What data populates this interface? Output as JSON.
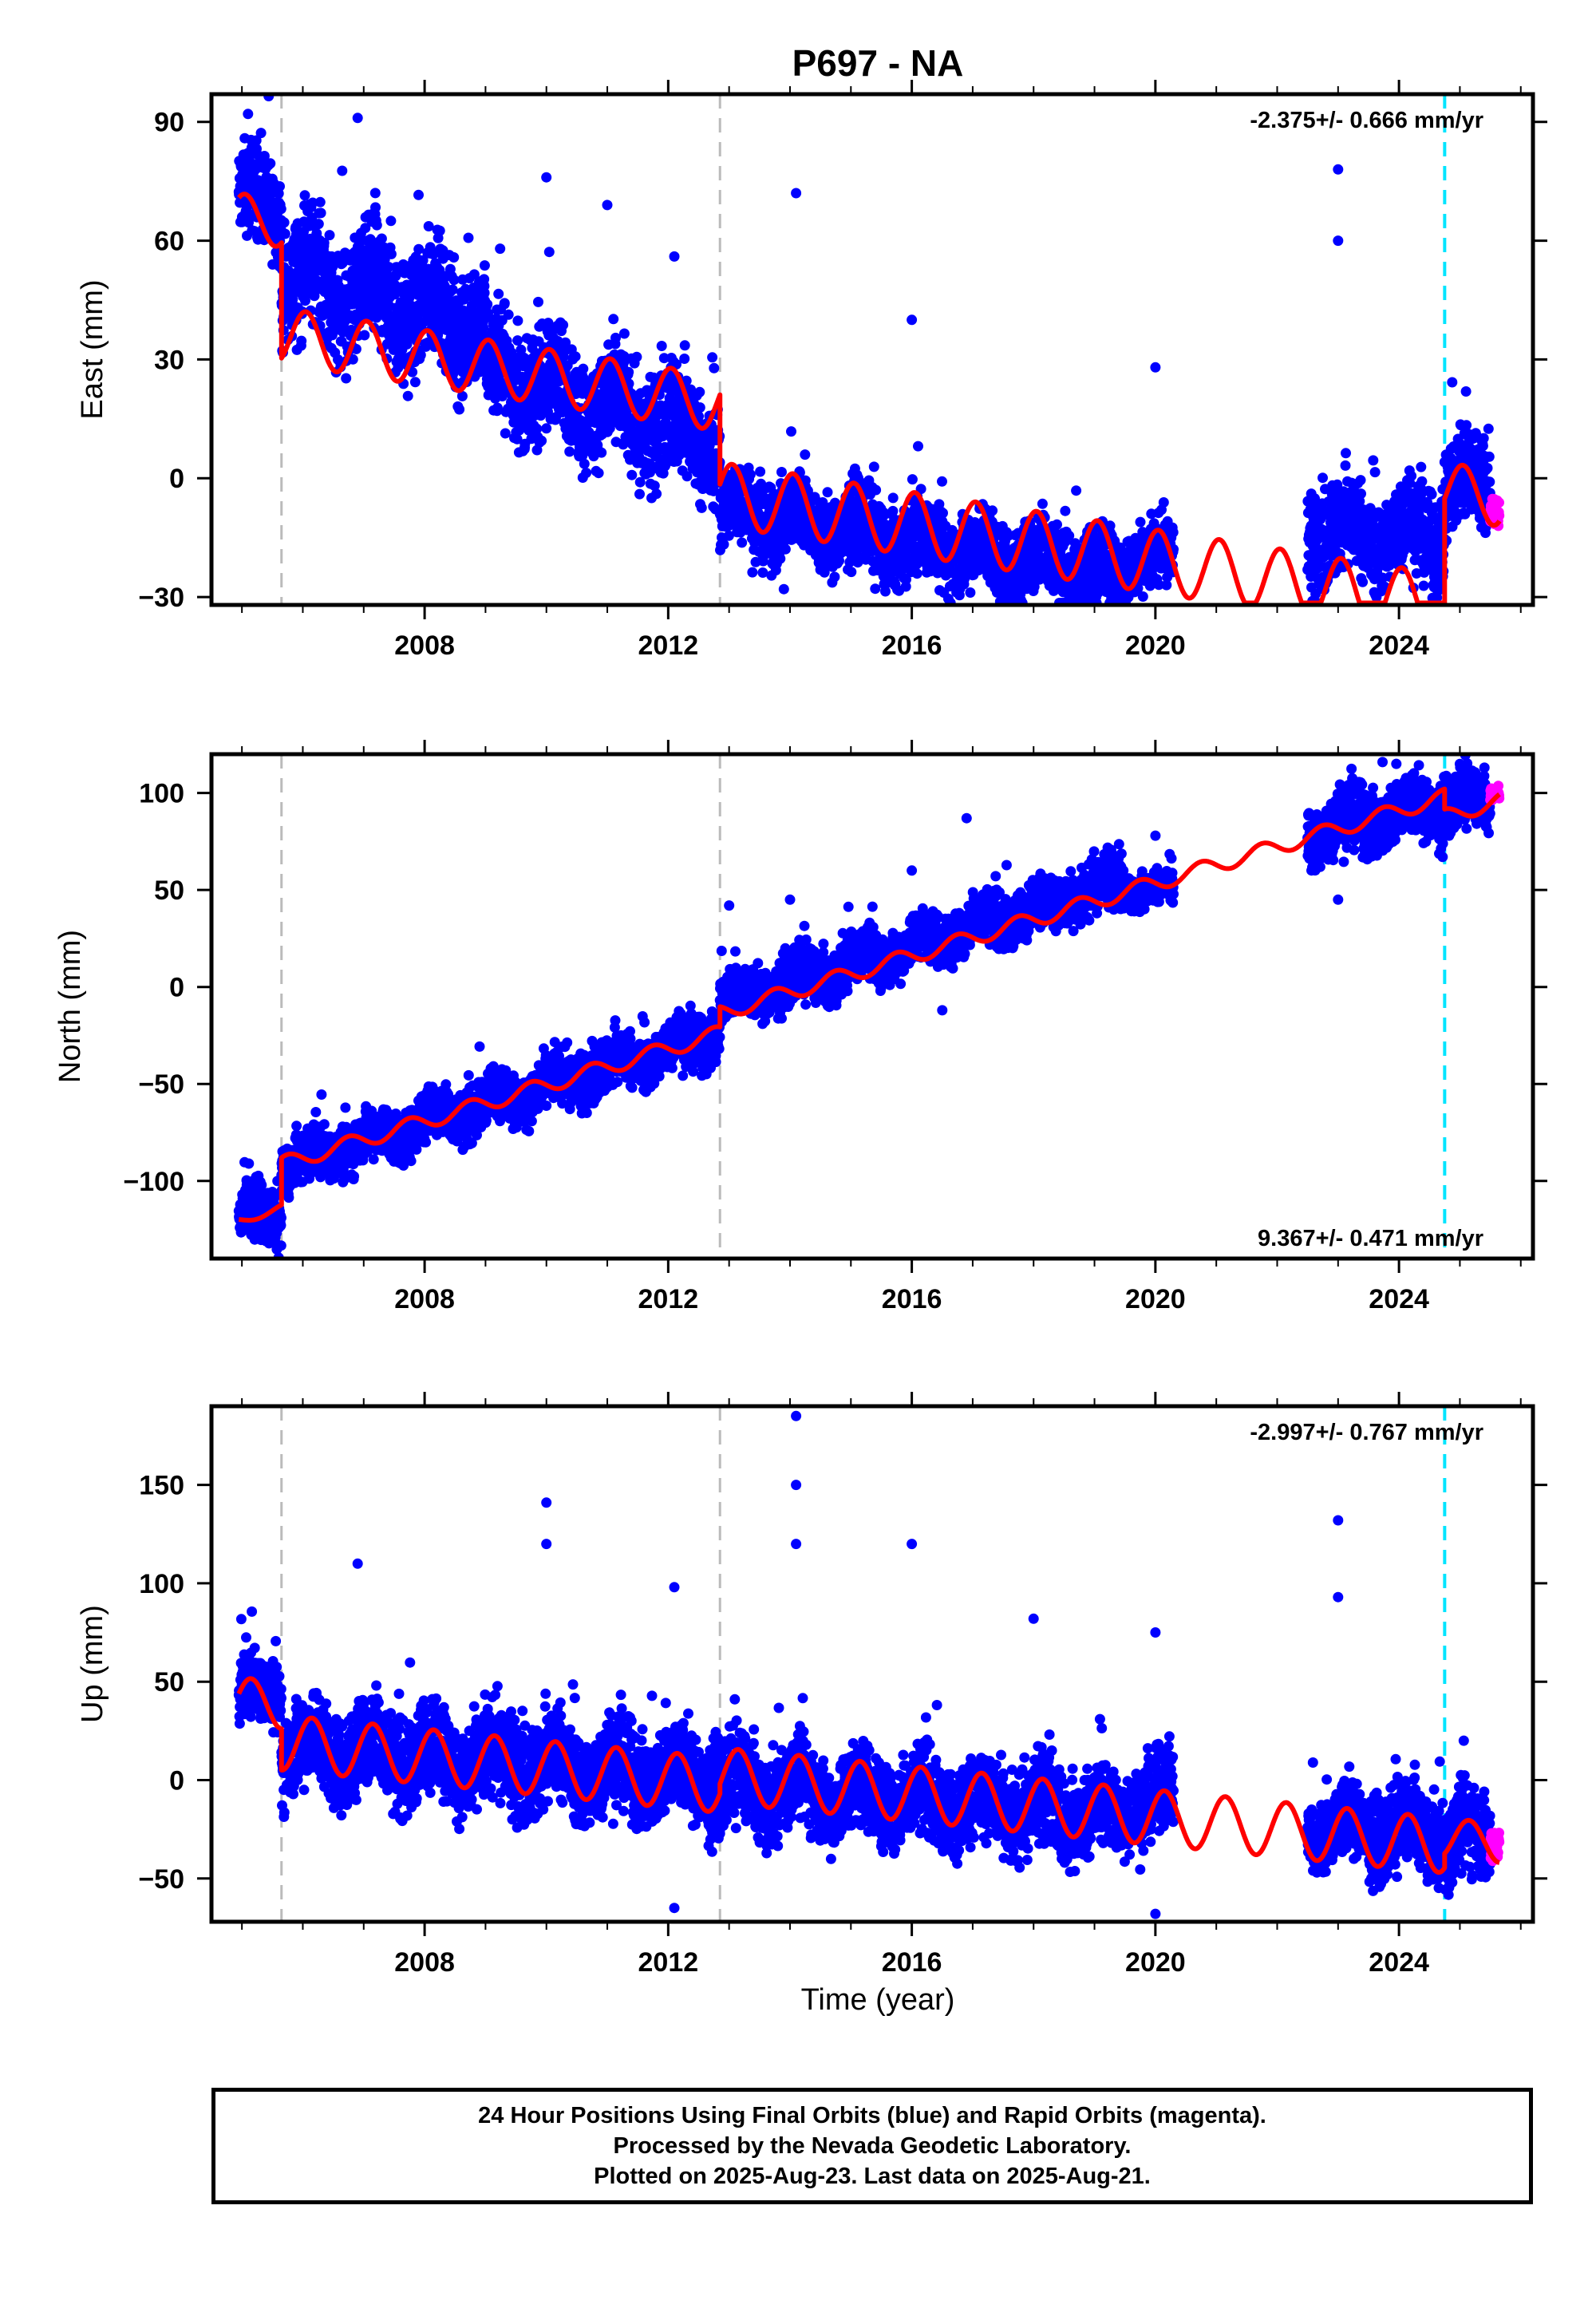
{
  "title": "P697 - NA",
  "xlabel": "Time (year)",
  "colors": {
    "final": "#0000ff",
    "rapid": "#ff00ff",
    "model": "#ff0000",
    "event_gray": "#bbbbbb",
    "event_cyan": "#00e5ff"
  },
  "footer": {
    "line1": "24 Hour Positions Using Final Orbits (blue) and Rapid Orbits (magenta).",
    "line2": "Processed by the Nevada Geodetic Laboratory.",
    "line3": "Plotted on 2025-Aug-23. Last data on 2025-Aug-21."
  },
  "chart_data": [
    {
      "type": "scatter",
      "ylabel": "East (mm)",
      "rate_label": "-2.375+/- 0.666 mm/yr",
      "rate_position": "top-right",
      "xlim": [
        2004.5,
        2026.2
      ],
      "ylim": [
        -32,
        97
      ],
      "xticks": [
        2008,
        2012,
        2016,
        2020,
        2024
      ],
      "xtick_labels": [
        "2008",
        "2012",
        "2016",
        "2020",
        "2024"
      ],
      "yticks": [
        -30,
        0,
        30,
        60,
        90
      ],
      "ytick_labels": [
        "−30",
        "0",
        "30",
        "60",
        "90"
      ],
      "event_lines": [
        {
          "x": 2005.65,
          "style": "gray"
        },
        {
          "x": 2012.85,
          "style": "gray"
        },
        {
          "x": 2024.75,
          "style": "cyan"
        }
      ],
      "model_segments": [
        {
          "t0": 2004.95,
          "t1": 2005.65,
          "rate": -2.375,
          "offset": 66,
          "amp": 6,
          "phase": 0.2
        },
        {
          "t0": 2005.65,
          "t1": 2012.85,
          "rate": -2.375,
          "offset": 36,
          "amp": 7,
          "phase": 0.2
        },
        {
          "t0": 2012.85,
          "t1": 2024.75,
          "rate": -2.375,
          "offset": -4,
          "amp": 8,
          "phase": 0.2
        },
        {
          "t0": 2024.75,
          "t1": 2025.65,
          "rate": -2.375,
          "offset": -3,
          "amp": 7,
          "phase": 0.2
        }
      ],
      "data_segments": [
        {
          "t0": 2004.95,
          "t1": 2005.65,
          "base": 70,
          "noise": 7
        },
        {
          "t0": 2005.65,
          "t1": 2009.0,
          "base": 52,
          "noise": 9,
          "slope": -4
        },
        {
          "t0": 2009.0,
          "t1": 2012.85,
          "base": 28,
          "noise": 8,
          "slope": -5
        },
        {
          "t0": 2012.85,
          "t1": 2019.5,
          "base": -8,
          "noise": 6,
          "slope": -2.5
        },
        {
          "t0": 2019.5,
          "t1": 2020.3,
          "base": -20,
          "noise": 5
        },
        {
          "t0": 2022.5,
          "t1": 2024.75,
          "base": -14,
          "noise": 7
        },
        {
          "t0": 2024.75,
          "t1": 2025.5,
          "base": -2,
          "noise": 8
        }
      ],
      "rapid_segment": {
        "t0": 2025.5,
        "t1": 2025.65,
        "base": -9,
        "noise": 2
      },
      "spikes": [
        [
          2005.1,
          92
        ],
        [
          2006.9,
          91
        ],
        [
          2010.0,
          76
        ],
        [
          2011.0,
          69
        ],
        [
          2012.1,
          56
        ],
        [
          2014.1,
          72
        ],
        [
          2016.0,
          40
        ],
        [
          2020.0,
          28
        ],
        [
          2023.0,
          78
        ],
        [
          2023.0,
          60
        ],
        [
          2013.9,
          -28
        ]
      ]
    },
    {
      "type": "scatter",
      "ylabel": "North (mm)",
      "rate_label": "9.367+/- 0.471 mm/yr",
      "rate_position": "bottom-right",
      "xlim": [
        2004.5,
        2026.2
      ],
      "ylim": [
        -140,
        120
      ],
      "xticks": [
        2008,
        2012,
        2016,
        2020,
        2024
      ],
      "xtick_labels": [
        "2008",
        "2012",
        "2016",
        "2020",
        "2024"
      ],
      "yticks": [
        -100,
        -50,
        0,
        50,
        100
      ],
      "ytick_labels": [
        "−100",
        "−50",
        "0",
        "50",
        "100"
      ],
      "event_lines": [
        {
          "x": 2005.65,
          "style": "gray"
        },
        {
          "x": 2012.85,
          "style": "gray"
        },
        {
          "x": 2024.75,
          "style": "cyan"
        }
      ],
      "model_segments": [
        {
          "t0": 2004.95,
          "t1": 2005.65,
          "rate": 9.367,
          "offset": -120,
          "amp": 2,
          "phase": 0.5,
          "ref": 2005.0
        },
        {
          "t0": 2005.65,
          "t1": 2012.85,
          "rate": 9.367,
          "offset": -88,
          "amp": 4,
          "phase": 0.5,
          "ref": 2006.0
        },
        {
          "t0": 2012.85,
          "t1": 2024.75,
          "rate": 9.367,
          "offset": -12,
          "amp": 4,
          "phase": 0.5,
          "ref": 2013.0
        },
        {
          "t0": 2024.75,
          "t1": 2025.65,
          "rate": 9.367,
          "offset": 90,
          "amp": 4,
          "phase": 0.5,
          "ref": 2025.0
        }
      ],
      "data_segments": [
        {
          "t0": 2004.95,
          "t1": 2005.65,
          "base": -118,
          "noise": 8,
          "slope": 0
        },
        {
          "t0": 2005.65,
          "t1": 2012.85,
          "base": -92,
          "noise": 8,
          "slope": 9.4
        },
        {
          "t0": 2012.85,
          "t1": 2019.5,
          "base": -8,
          "noise": 8,
          "slope": 9.4
        },
        {
          "t0": 2019.5,
          "t1": 2020.3,
          "base": 50,
          "noise": 5
        },
        {
          "t0": 2022.5,
          "t1": 2024.75,
          "base": 80,
          "noise": 10,
          "slope": 6
        },
        {
          "t0": 2024.75,
          "t1": 2025.5,
          "base": 95,
          "noise": 8
        }
      ],
      "rapid_segment": {
        "t0": 2025.5,
        "t1": 2025.65,
        "base": 100,
        "noise": 2
      },
      "spikes": [
        [
          2013.0,
          42
        ],
        [
          2014.0,
          45
        ],
        [
          2016.0,
          60
        ],
        [
          2016.9,
          87
        ],
        [
          2016.5,
          -12
        ],
        [
          2020.0,
          78
        ],
        [
          2023.0,
          45
        ],
        [
          2025.0,
          115
        ]
      ]
    },
    {
      "type": "scatter",
      "ylabel": "Up (mm)",
      "rate_label": "-2.997+/- 0.767 mm/yr",
      "rate_position": "top-right",
      "xlim": [
        2004.5,
        2026.2
      ],
      "ylim": [
        -72,
        190
      ],
      "xticks": [
        2008,
        2012,
        2016,
        2020,
        2024
      ],
      "xtick_labels": [
        "2008",
        "2012",
        "2016",
        "2020",
        "2024"
      ],
      "yticks": [
        -50,
        0,
        50,
        100,
        150
      ],
      "ytick_labels": [
        "−50",
        "0",
        "50",
        "100",
        "150"
      ],
      "event_lines": [
        {
          "x": 2005.65,
          "style": "gray"
        },
        {
          "x": 2012.85,
          "style": "gray"
        },
        {
          "x": 2024.75,
          "style": "cyan"
        }
      ],
      "model_segments": [
        {
          "t0": 2004.95,
          "t1": 2005.65,
          "rate": -2.997,
          "offset": 40,
          "amp": 12,
          "phase": 0.1,
          "ref": 2005.0
        },
        {
          "t0": 2005.65,
          "t1": 2012.85,
          "rate": -2.997,
          "offset": 18,
          "amp": 14,
          "phase": 0.1,
          "ref": 2006.0
        },
        {
          "t0": 2012.85,
          "t1": 2024.75,
          "rate": -2.997,
          "offset": 2,
          "amp": 14,
          "phase": 0.1,
          "ref": 2013.0
        },
        {
          "t0": 2024.75,
          "t1": 2025.65,
          "rate": -2.997,
          "offset": -30,
          "amp": 10,
          "phase": 0.1,
          "ref": 2025.0
        }
      ],
      "data_segments": [
        {
          "t0": 2004.95,
          "t1": 2005.65,
          "base": 45,
          "noise": 10
        },
        {
          "t0": 2005.65,
          "t1": 2012.85,
          "base": 18,
          "noise": 14,
          "slope": -2.5
        },
        {
          "t0": 2012.85,
          "t1": 2019.5,
          "base": -2,
          "noise": 13,
          "slope": -2.5
        },
        {
          "t0": 2019.5,
          "t1": 2020.3,
          "base": -10,
          "noise": 12
        },
        {
          "t0": 2022.5,
          "t1": 2024.75,
          "base": -25,
          "noise": 12
        },
        {
          "t0": 2024.75,
          "t1": 2025.5,
          "base": -30,
          "noise": 14
        }
      ],
      "rapid_segment": {
        "t0": 2025.5,
        "t1": 2025.65,
        "base": -32,
        "noise": 5
      },
      "spikes": [
        [
          2014.1,
          185
        ],
        [
          2014.1,
          150
        ],
        [
          2014.1,
          120
        ],
        [
          2010.0,
          141
        ],
        [
          2010.0,
          120
        ],
        [
          2016.0,
          120
        ],
        [
          2023.0,
          132
        ],
        [
          2023.0,
          93
        ],
        [
          2006.9,
          110
        ],
        [
          2012.1,
          98
        ],
        [
          2012.1,
          -65
        ],
        [
          2018.0,
          82
        ],
        [
          2020.0,
          75
        ],
        [
          2020.0,
          -68
        ]
      ]
    }
  ]
}
